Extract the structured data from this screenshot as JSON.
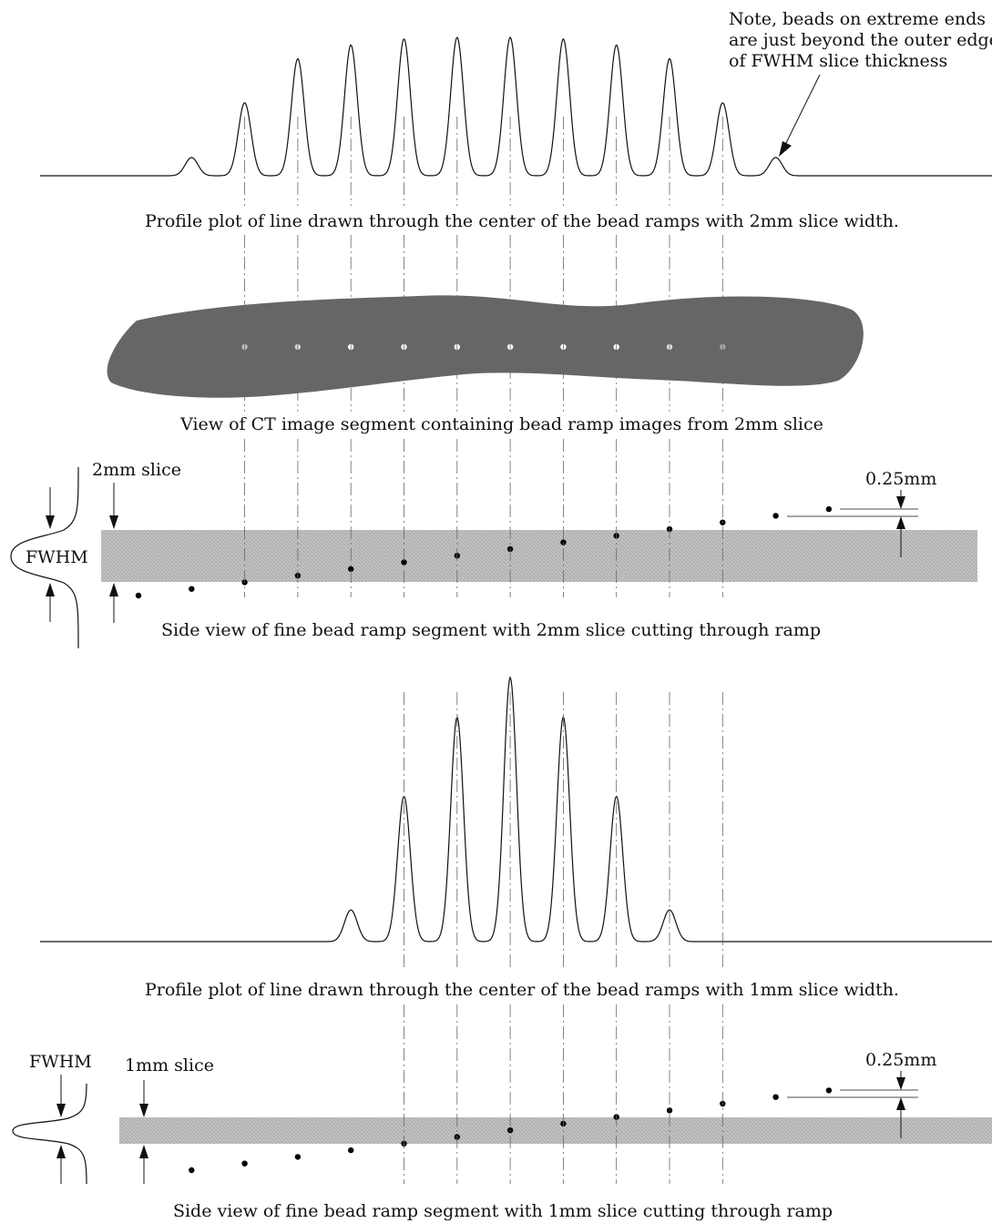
{
  "note": {
    "lines": [
      "Note, beads on extreme ends",
      "are just beyond the outer edge",
      "of FWHM slice thickness"
    ]
  },
  "captions": {
    "profile_2mm": "Profile plot of line drawn through the center of the bead ramps with 2mm slice width.",
    "ct_view": "View of CT image segment containing bead ramp images from 2mm slice",
    "side_2mm": "Side view of fine bead ramp segment with 2mm slice cutting through ramp",
    "profile_1mm": "Profile plot of line drawn through the center of the bead ramps with 1mm slice width.",
    "side_1mm": "Side view of fine bead ramp segment with 1mm slice cutting through ramp"
  },
  "labels": {
    "slice_2mm": "2mm slice",
    "slice_1mm": "1mm slice",
    "fwhm_top": "FWHM",
    "fwhm_bottom": "FWHM",
    "spacing_top": "0.25mm",
    "spacing_bottom": "0.25mm"
  },
  "colors": {
    "line": "#111111",
    "phantom": "#666666",
    "slab": "#b9b9b9",
    "bead": "#000000"
  },
  "profile_2mm_peaks": [
    0.12,
    0.48,
    0.77,
    0.86,
    0.9,
    0.91,
    0.91,
    0.9,
    0.86,
    0.77,
    0.48,
    0.12
  ],
  "profile_1mm_peaks": [
    0.12,
    0.55,
    0.85,
    1.0,
    0.85,
    0.55,
    0.12
  ],
  "bead_spacing_mm": 0.25
}
